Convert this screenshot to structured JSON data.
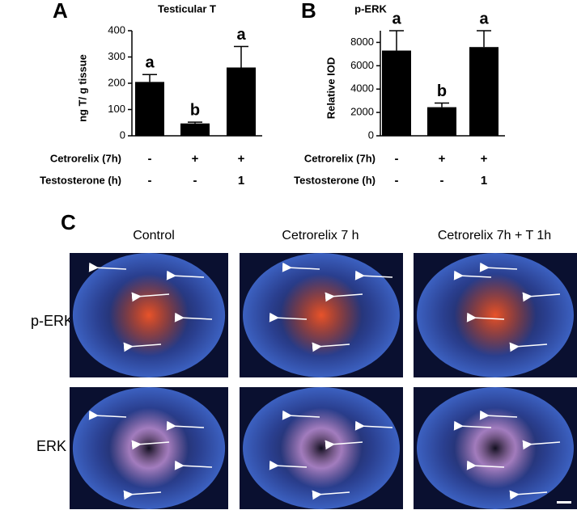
{
  "chart_data": [
    {
      "type": "bar",
      "panel": "A",
      "title": "Testicular T",
      "y_label": "ng T/ g tissue",
      "values": [
        205,
        47,
        260
      ],
      "errors": [
        28,
        5,
        80
      ],
      "annotations": [
        "a",
        "b",
        "a"
      ],
      "color": "#000000",
      "ylim": [
        0,
        400
      ],
      "yticks": [
        0,
        100,
        200,
        300,
        400
      ],
      "conditions": [
        {
          "label": "Cetrorelix (7h)",
          "values": [
            "-",
            "+",
            "+"
          ]
        },
        {
          "label": "Testosterone (h)",
          "values": [
            "-",
            "-",
            "1"
          ]
        }
      ]
    },
    {
      "type": "bar",
      "panel": "B",
      "title": "p-ERK",
      "y_label": "Relative IOD",
      "values": [
        7300,
        2450,
        7600
      ],
      "errors": [
        1700,
        350,
        1400
      ],
      "annotations": [
        "a",
        "b",
        "a"
      ],
      "color": "#000000",
      "ylim": [
        0,
        9000
      ],
      "yticks": [
        0,
        2000,
        4000,
        6000,
        8000
      ],
      "conditions": [
        {
          "label": "Cetrorelix (7h)",
          "values": [
            "-",
            "+",
            "+"
          ]
        },
        {
          "label": "Testosterone (h)",
          "values": [
            "-",
            "-",
            "1"
          ]
        }
      ]
    }
  ],
  "micrographs": {
    "panel": "C",
    "columns": [
      "Control",
      "Cetrorelix 7 h",
      "Cetrorelix 7h + T 1h"
    ],
    "rows": [
      "p-ERK",
      "ERK"
    ]
  }
}
